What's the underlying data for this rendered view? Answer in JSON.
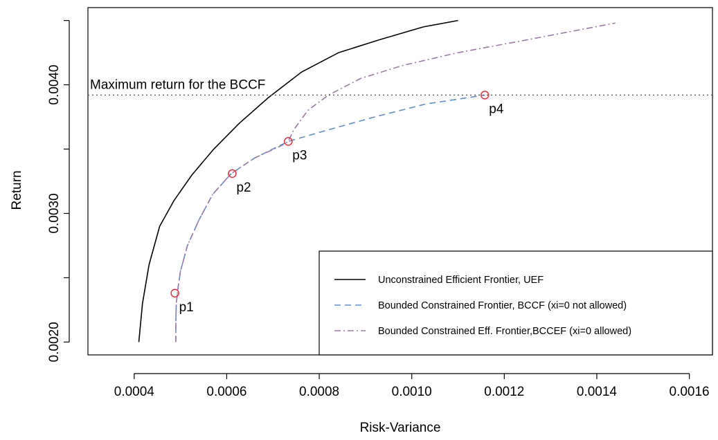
{
  "chart_data": {
    "type": "line",
    "title": "",
    "xlabel": "Risk-Variance",
    "ylabel": "Return",
    "xlim": [
      0.0003,
      0.00165
    ],
    "ylim": [
      0.0019,
      0.0046
    ],
    "x_ticks": [
      0.0004,
      0.0006,
      0.0008,
      0.001,
      0.0012,
      0.0014,
      0.0016
    ],
    "x_tick_labels": [
      "0.0004",
      "0.0006",
      "0.0008",
      "0.0010",
      "0.0012",
      "0.0014",
      "0.0016"
    ],
    "y_ticks": [
      0.002,
      0.0025,
      0.003,
      0.0035,
      0.004,
      0.0045
    ],
    "y_tick_labels": [
      "0.0020",
      "",
      "0.0030",
      "",
      "0.0040",
      ""
    ],
    "grid": false,
    "legend_position": "bottom-right",
    "series": [
      {
        "name": "Unconstrained Efficient Frontier, UEF",
        "style": "solid",
        "color": "#000000",
        "x": [
          0.00041,
          0.000418,
          0.000432,
          0.000455,
          0.000486,
          0.000525,
          0.000572,
          0.000627,
          0.00069,
          0.000762,
          0.000842,
          0.00093,
          0.001025,
          0.0011
        ],
        "y": [
          0.002,
          0.0023,
          0.0026,
          0.0029,
          0.0031,
          0.0033,
          0.0035,
          0.0037,
          0.0039,
          0.0041,
          0.00425,
          0.00435,
          0.00445,
          0.0045
        ]
      },
      {
        "name": "Bounded Constrained Frontier, BCCF (xi=0 not allowed)",
        "style": "dashed",
        "color": "#5b8fd0",
        "x": [
          0.00049,
          0.00049,
          0.000491,
          0.000494,
          0.0005,
          0.000515,
          0.00054,
          0.00057,
          0.00061,
          0.00066,
          0.000733,
          0.00082,
          0.00092,
          0.00103,
          0.001158
        ],
        "y": [
          0.002,
          0.00215,
          0.0023,
          0.0024,
          0.00255,
          0.00275,
          0.00295,
          0.00315,
          0.00331,
          0.00343,
          0.00356,
          0.00365,
          0.00375,
          0.00385,
          0.00392
        ]
      },
      {
        "name": "Bounded Constrained Eff. Frontier,BCCEF (xi=0 allowed)",
        "style": "dashdot",
        "color": "#9a78a8",
        "x": [
          0.00049,
          0.00049,
          0.000491,
          0.000494,
          0.0005,
          0.000515,
          0.00054,
          0.00057,
          0.00061,
          0.00066,
          0.00072,
          0.000733,
          0.000745,
          0.000775,
          0.00082,
          0.00089,
          0.00098,
          0.0011,
          0.00125,
          0.00144
        ],
        "y": [
          0.002,
          0.00215,
          0.0023,
          0.0024,
          0.00255,
          0.00275,
          0.00295,
          0.00315,
          0.00331,
          0.00343,
          0.00353,
          0.00356,
          0.00365,
          0.0038,
          0.00392,
          0.00405,
          0.00415,
          0.00425,
          0.00435,
          0.00448
        ]
      }
    ],
    "points": [
      {
        "label": "p1",
        "x": 0.000488,
        "y": 0.00238
      },
      {
        "label": "p2",
        "x": 0.000612,
        "y": 0.00331
      },
      {
        "label": "p3",
        "x": 0.000733,
        "y": 0.00356
      },
      {
        "label": "p4",
        "x": 0.001158,
        "y": 0.00392
      }
    ],
    "point_color": "#e8303a",
    "reference_line": {
      "y": 0.00392,
      "label": "Maximum return for the BCCF",
      "style": "dotted"
    }
  }
}
